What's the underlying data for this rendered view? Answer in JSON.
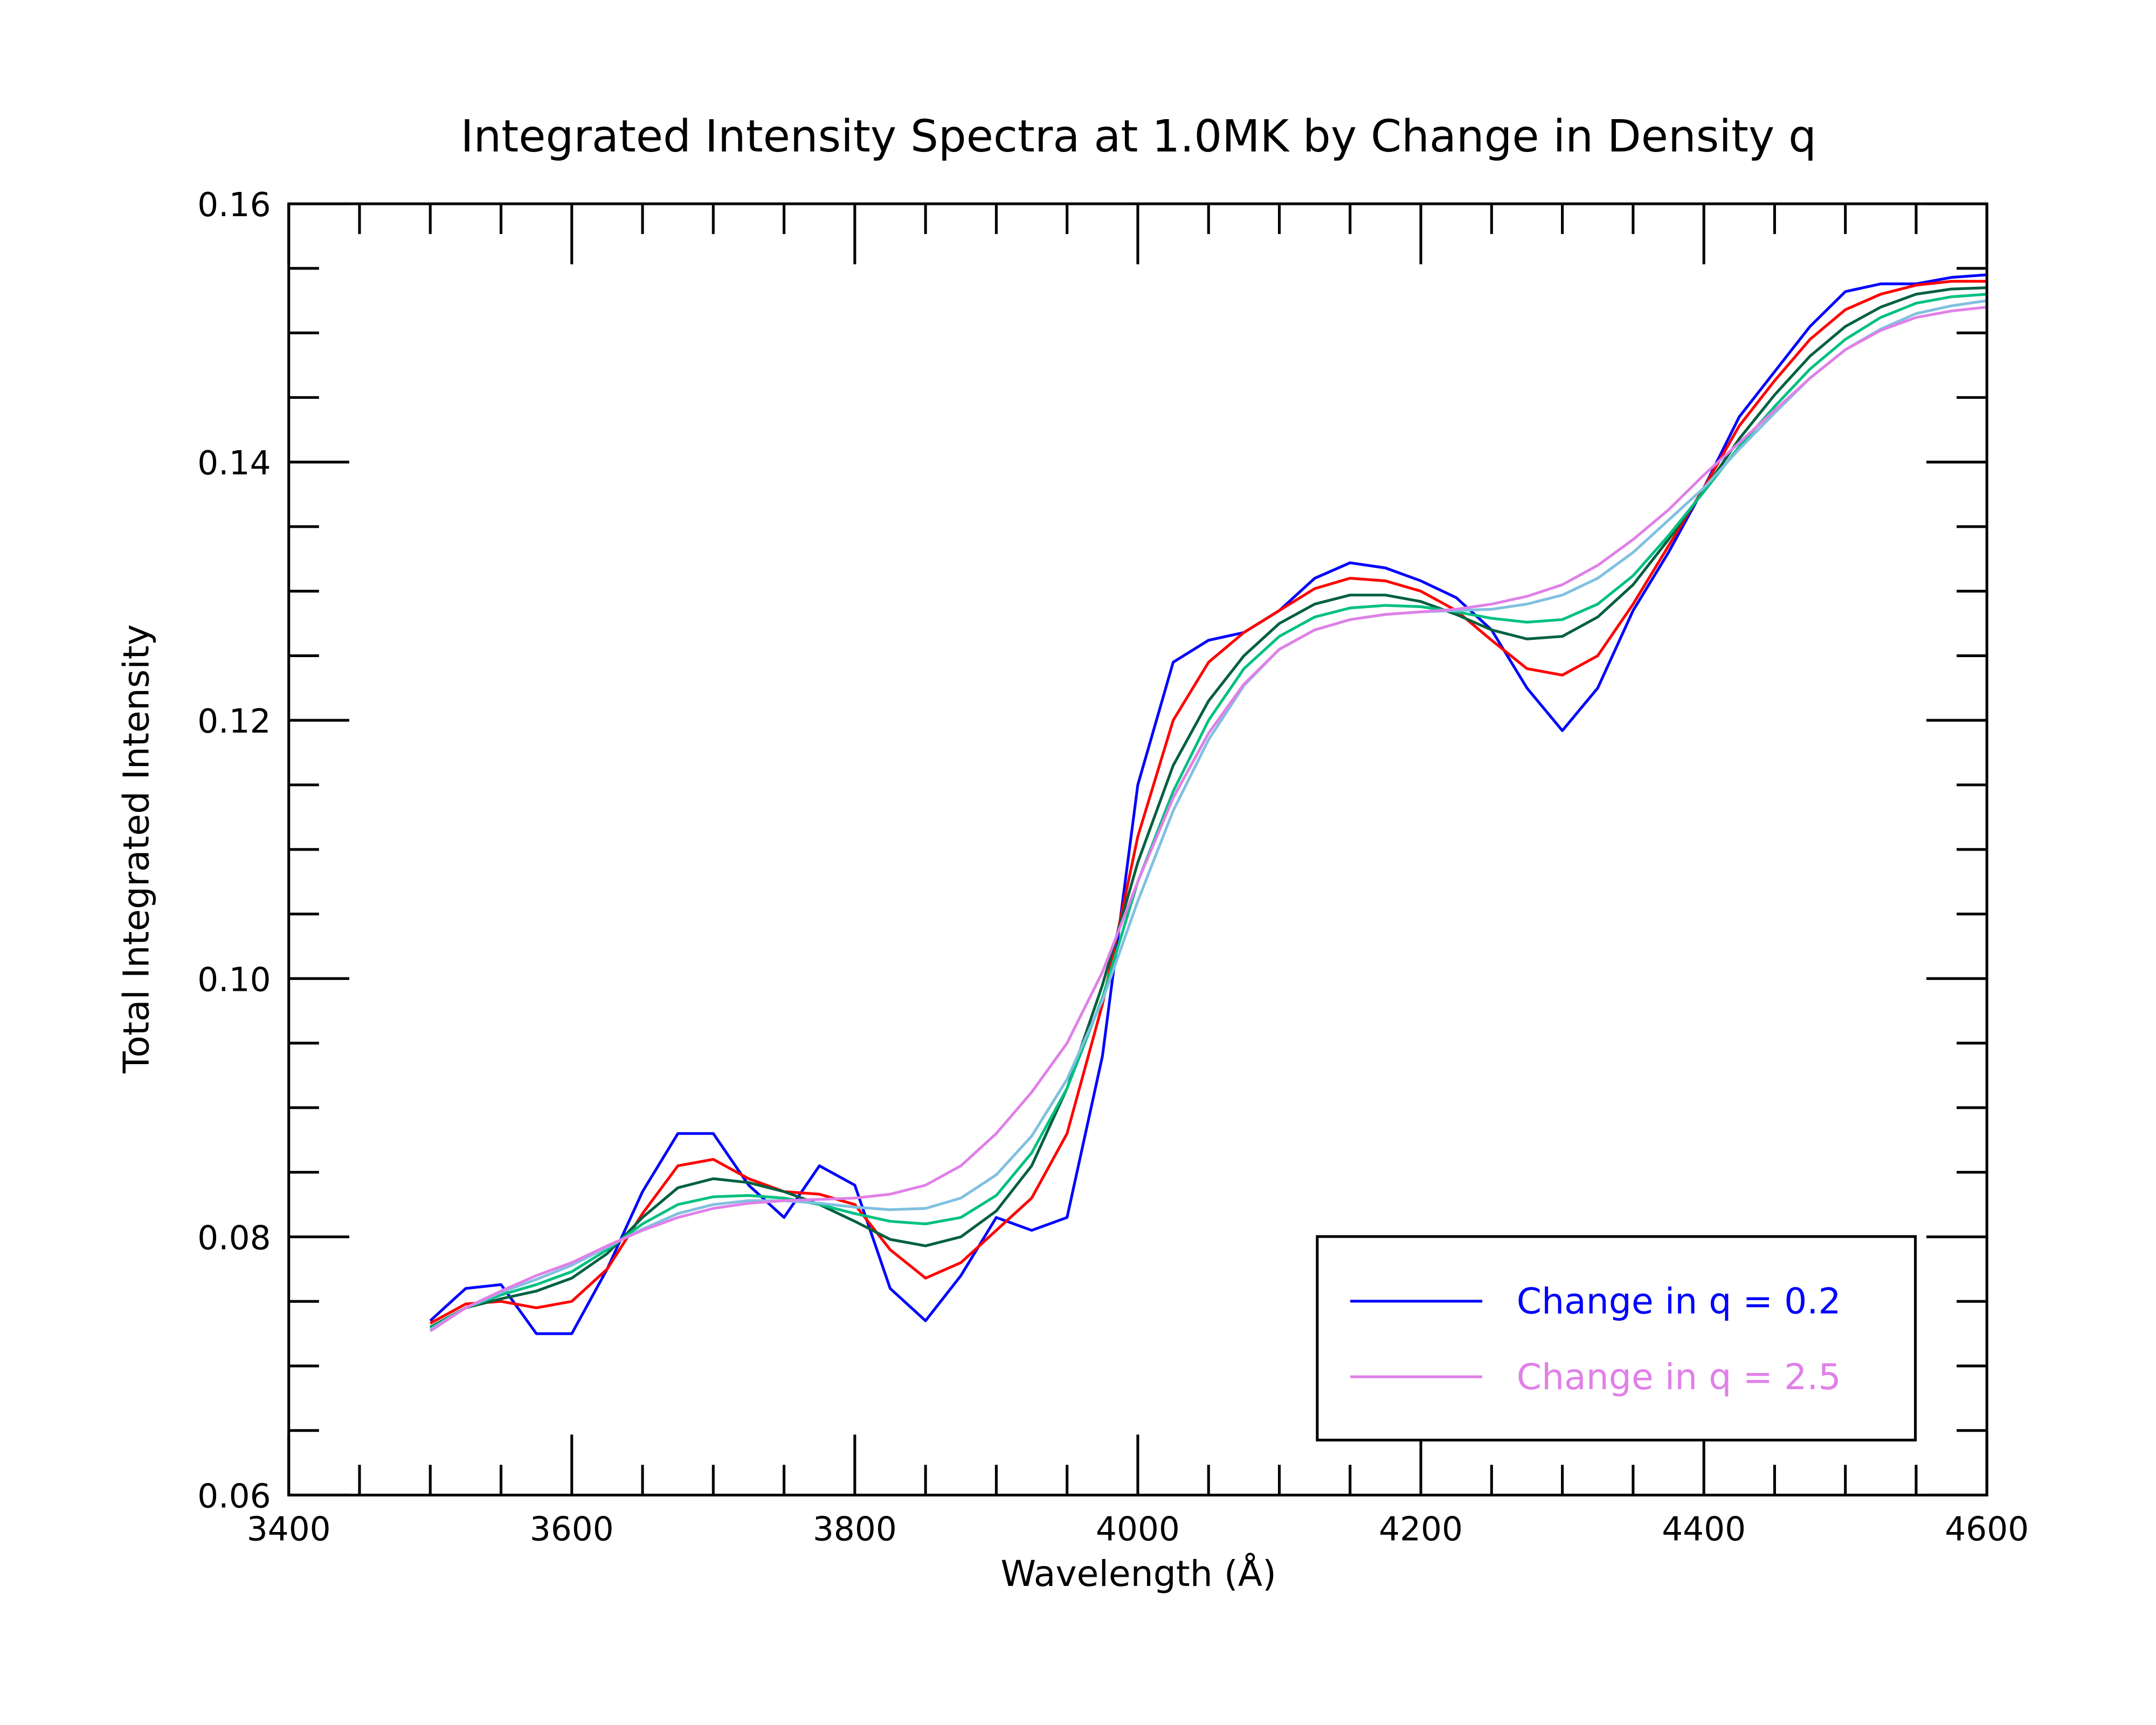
{
  "chart_data": {
    "type": "line",
    "title": "Integrated Intensity Spectra at 1.0MK by Change in Density q",
    "x_label": "Wavelength (Å)",
    "y_label": "Total Integrated Intensity",
    "xlim": [
      3400,
      4600
    ],
    "ylim": [
      0.06,
      0.16
    ],
    "xticks": [
      3400,
      3600,
      3800,
      4000,
      4200,
      4400,
      4600
    ],
    "yticks": [
      0.06,
      0.08,
      {
        "value": 0.1,
        "label": "0.10"
      },
      0.12,
      0.14,
      0.16
    ],
    "xminorticks": [
      3450,
      3500,
      3550,
      3650,
      3700,
      3750,
      3850,
      3900,
      3950,
      4050,
      4100,
      4150,
      4250,
      4300,
      4350,
      4450,
      4500,
      4550
    ],
    "yminorticks": [
      0.065,
      0.07,
      0.075,
      0.085,
      0.09,
      0.095,
      0.105,
      0.11,
      0.115,
      0.125,
      0.13,
      0.135,
      0.145,
      0.15,
      0.155
    ],
    "legend": "lower right",
    "x": [
      3500,
      3525,
      3550,
      3575,
      3600,
      3625,
      3650,
      3675,
      3700,
      3725,
      3750,
      3775,
      3800,
      3825,
      3850,
      3875,
      3900,
      3925,
      3950,
      3975,
      4000,
      4025,
      4050,
      4075,
      4100,
      4125,
      4150,
      4175,
      4200,
      4225,
      4250,
      4275,
      4300,
      4325,
      4350,
      4375,
      4400,
      4425,
      4450,
      4475,
      4500,
      4525,
      4550,
      4575,
      4600
    ],
    "series": [
      {
        "name": "Change in q = 0.2",
        "color": "#0000ff",
        "values": [
          0.0735,
          0.076,
          0.0763,
          0.0725,
          0.0725,
          0.0775,
          0.0835,
          0.088,
          0.088,
          0.084,
          0.0815,
          0.0855,
          0.084,
          0.076,
          0.0735,
          0.077,
          0.0815,
          0.0805,
          0.0815,
          0.094,
          0.115,
          0.1245,
          0.1262,
          0.1268,
          0.1285,
          0.131,
          0.1322,
          0.1318,
          0.1308,
          0.1295,
          0.127,
          0.1225,
          0.1192,
          0.1225,
          0.1285,
          0.133,
          0.138,
          0.1435,
          0.147,
          0.1505,
          0.1532,
          0.1538,
          0.1538,
          0.1543,
          0.1545
        ]
      },
      {
        "color": "#ff0000",
        "values": [
          0.0733,
          0.0748,
          0.075,
          0.0745,
          0.075,
          0.0775,
          0.0818,
          0.0855,
          0.086,
          0.0845,
          0.0835,
          0.0833,
          0.0825,
          0.079,
          0.0768,
          0.078,
          0.0805,
          0.083,
          0.088,
          0.098,
          0.111,
          0.12,
          0.1245,
          0.1268,
          0.1285,
          0.1302,
          0.131,
          0.1308,
          0.13,
          0.1285,
          0.1262,
          0.124,
          0.1235,
          0.125,
          0.129,
          0.1335,
          0.138,
          0.1428,
          0.1463,
          0.1495,
          0.1518,
          0.153,
          0.1537,
          0.154,
          0.154
        ]
      },
      {
        "color": "#006040",
        "values": [
          0.073,
          0.0745,
          0.0752,
          0.0758,
          0.0768,
          0.0787,
          0.0815,
          0.0838,
          0.0845,
          0.0842,
          0.0835,
          0.0825,
          0.0812,
          0.0798,
          0.0793,
          0.08,
          0.082,
          0.0855,
          0.0915,
          0.0995,
          0.109,
          0.1165,
          0.1215,
          0.125,
          0.1275,
          0.129,
          0.1297,
          0.1297,
          0.1292,
          0.1282,
          0.127,
          0.1263,
          0.1265,
          0.128,
          0.1305,
          0.134,
          0.1378,
          0.1418,
          0.1452,
          0.1482,
          0.1505,
          0.152,
          0.153,
          0.1534,
          0.1535
        ]
      },
      {
        "color": "#00c080",
        "values": [
          0.0729,
          0.0745,
          0.0755,
          0.0763,
          0.0773,
          0.079,
          0.081,
          0.0825,
          0.0831,
          0.0832,
          0.083,
          0.0825,
          0.0818,
          0.0812,
          0.081,
          0.0815,
          0.0832,
          0.0865,
          0.0915,
          0.0985,
          0.1075,
          0.1145,
          0.12,
          0.124,
          0.1265,
          0.128,
          0.1287,
          0.1289,
          0.1288,
          0.1284,
          0.1279,
          0.1276,
          0.1278,
          0.129,
          0.1312,
          0.1343,
          0.1377,
          0.1412,
          0.1443,
          0.1472,
          0.1495,
          0.1512,
          0.1523,
          0.1528,
          0.153
        ]
      },
      {
        "color": "#80c0e0",
        "values": [
          0.0728,
          0.0745,
          0.0757,
          0.0767,
          0.0778,
          0.0792,
          0.0806,
          0.0818,
          0.0825,
          0.0828,
          0.0828,
          0.0826,
          0.0823,
          0.0821,
          0.0822,
          0.083,
          0.0848,
          0.0878,
          0.0922,
          0.0983,
          0.106,
          0.113,
          0.1185,
          0.1227,
          0.1255,
          0.127,
          0.1278,
          0.1282,
          0.1284,
          0.1285,
          0.1286,
          0.129,
          0.1297,
          0.131,
          0.133,
          0.1355,
          0.138,
          0.141,
          0.1438,
          0.1465,
          0.1487,
          0.1503,
          0.1515,
          0.1521,
          0.1525
        ]
      },
      {
        "name": "Change in q = 2.5",
        "color": "#e080e8",
        "values": [
          0.0727,
          0.0745,
          0.0758,
          0.077,
          0.078,
          0.0793,
          0.0805,
          0.0815,
          0.0822,
          0.0826,
          0.0828,
          0.0829,
          0.083,
          0.0833,
          0.084,
          0.0855,
          0.088,
          0.0912,
          0.095,
          0.1005,
          0.1075,
          0.114,
          0.119,
          0.1228,
          0.1255,
          0.127,
          0.1278,
          0.1282,
          0.1284,
          0.1286,
          0.129,
          0.1296,
          0.1305,
          0.132,
          0.134,
          0.1363,
          0.139,
          0.1415,
          0.144,
          0.1465,
          0.1487,
          0.1502,
          0.1512,
          0.1517,
          0.152
        ]
      }
    ]
  }
}
